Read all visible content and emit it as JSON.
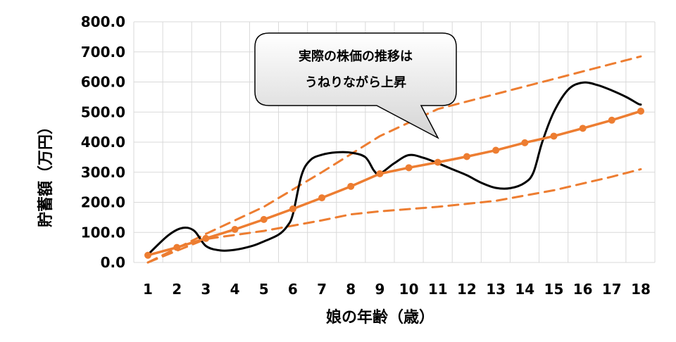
{
  "chart_data": {
    "type": "line",
    "xlabel": "娘の年齢（歳）",
    "ylabel": "貯蓄額（万円）",
    "categories": [
      "1",
      "2",
      "3",
      "4",
      "5",
      "6",
      "7",
      "8",
      "9",
      "10",
      "11",
      "12",
      "13",
      "14",
      "15",
      "16",
      "17",
      "18"
    ],
    "y_tick_labels": [
      "0.0",
      "100.0",
      "200.0",
      "300.0",
      "400.0",
      "500.0",
      "600.0",
      "700.0",
      "800.0"
    ],
    "ylim": [
      0,
      800
    ],
    "grid": true,
    "legend": "none",
    "series": [
      {
        "role": "savings-line",
        "color": "#ED7D31",
        "style": "solid-with-markers",
        "x": [
          1,
          2,
          3,
          4,
          5,
          6,
          7,
          8,
          9,
          10,
          11,
          12,
          13,
          14,
          15,
          16,
          17,
          18
        ],
        "values": [
          24,
          50,
          80,
          110,
          143,
          178,
          215,
          253,
          295,
          315,
          333,
          352,
          373,
          398,
          420,
          446,
          473,
          503
        ]
      },
      {
        "role": "actual-price",
        "color": "#000000",
        "style": "smooth",
        "x": [
          1,
          1.7,
          2.2,
          2.6,
          3,
          3.5,
          4,
          4.6,
          5,
          5.5,
          5.8,
          6,
          6.3,
          6.6,
          7,
          7.5,
          8,
          8.5,
          8.8,
          9,
          9.5,
          10,
          10.5,
          11,
          11.5,
          12,
          12.5,
          13,
          13.5,
          14,
          14.3,
          14.6,
          15,
          15.5,
          16,
          16.5,
          17,
          17.5,
          17.9,
          18
        ],
        "values": [
          26,
          90,
          115,
          105,
          55,
          40,
          42,
          55,
          70,
          92,
          120,
          160,
          290,
          340,
          358,
          366,
          365,
          350,
          305,
          295,
          330,
          357,
          348,
          330,
          310,
          290,
          265,
          248,
          247,
          265,
          300,
          400,
          500,
          575,
          598,
          590,
          572,
          550,
          528,
          525
        ]
      },
      {
        "role": "upper-bound",
        "color": "#ED7D31",
        "style": "dashed",
        "x": [
          1,
          3,
          5,
          7,
          9,
          11,
          13,
          15,
          17,
          18
        ],
        "values": [
          0,
          95,
          185,
          300,
          420,
          510,
          560,
          610,
          660,
          685
        ]
      },
      {
        "role": "lower-bound",
        "color": "#ED7D31",
        "style": "dashed",
        "x": [
          1,
          3,
          5,
          7,
          8,
          9,
          11,
          13,
          15,
          17,
          18
        ],
        "values": [
          0,
          78,
          105,
          140,
          160,
          170,
          185,
          205,
          240,
          285,
          310
        ]
      }
    ],
    "annotations": [
      {
        "line1": "実際の株価の推移は",
        "line2": "うねりながら上昇"
      }
    ]
  }
}
